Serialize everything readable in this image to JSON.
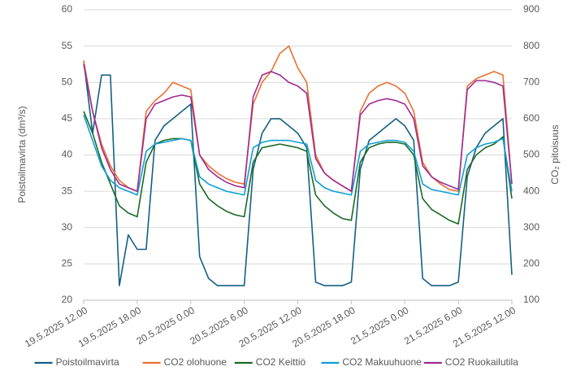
{
  "chart_data": {
    "type": "line",
    "categories": [
      "19.5.2025 12.00",
      null,
      null,
      null,
      null,
      null,
      "19.5.2025 18.00",
      null,
      null,
      null,
      null,
      null,
      "20.5.2025 0.00",
      null,
      null,
      null,
      null,
      null,
      "20.5.2025 6.00",
      null,
      null,
      null,
      null,
      null,
      "20.5.2025 12.00",
      null,
      null,
      null,
      null,
      null,
      "20.5.2025 18.00",
      null,
      null,
      null,
      null,
      null,
      "21.5.2025 0.00",
      null,
      null,
      null,
      null,
      null,
      "21.5.2025 6.00",
      null,
      null,
      null,
      null,
      null,
      "21.5.2025 12.00"
    ],
    "ylabel": "Poistoilmavirta (dm³/s)",
    "y2label": "CO₂ pitoisuus",
    "ylim": [
      20,
      60
    ],
    "yticks": [
      20,
      25,
      30,
      35,
      40,
      45,
      50,
      55,
      60
    ],
    "y2lim": [
      100,
      900
    ],
    "y2ticks": [
      100,
      200,
      300,
      400,
      500,
      600,
      700,
      800,
      900
    ],
    "grid": true,
    "legend": "bottom",
    "series": [
      {
        "name": "Poistoilmavirta",
        "color": "#156082",
        "values": [
          53,
          43,
          51,
          51,
          22,
          29,
          27,
          27,
          42,
          44,
          45,
          46,
          47,
          26,
          23,
          22,
          22,
          22,
          22,
          38,
          43,
          45,
          45,
          44,
          43,
          41,
          22.5,
          22,
          22,
          22,
          22.5,
          38,
          42,
          43,
          44,
          45,
          44,
          42,
          23,
          22,
          22,
          22,
          22.5,
          37,
          41,
          43,
          44,
          45,
          23.5
        ]
      },
      {
        "name": "CO2 olohuone",
        "color": "#e97132",
        "axis": "y2",
        "values": [
          760,
          620,
          530,
          470,
          430,
          410,
          400,
          620,
          650,
          670,
          700,
          690,
          680,
          500,
          470,
          450,
          435,
          425,
          420,
          640,
          700,
          730,
          780,
          800,
          740,
          700,
          500,
          450,
          430,
          415,
          400,
          620,
          670,
          690,
          700,
          690,
          670,
          620,
          480,
          440,
          420,
          405,
          400,
          690,
          710,
          720,
          730,
          720,
          420
        ]
      },
      {
        "name": "CO2 Keittiö",
        "color": "#196b24",
        "axis": "y2",
        "values": [
          620,
          560,
          480,
          420,
          360,
          340,
          330,
          480,
          530,
          540,
          545,
          545,
          540,
          420,
          380,
          360,
          345,
          335,
          330,
          480,
          520,
          525,
          530,
          525,
          520,
          510,
          390,
          360,
          340,
          325,
          320,
          480,
          520,
          530,
          535,
          535,
          530,
          500,
          380,
          350,
          335,
          320,
          310,
          460,
          500,
          520,
          530,
          550,
          380
        ]
      },
      {
        "name": "CO2 Makuuhuone",
        "color": "#0f9ed5",
        "axis": "y2",
        "values": [
          610,
          540,
          470,
          430,
          410,
          400,
          390,
          510,
          530,
          535,
          540,
          545,
          540,
          440,
          420,
          410,
          400,
          395,
          390,
          520,
          535,
          540,
          540,
          540,
          535,
          530,
          430,
          410,
          400,
          395,
          390,
          510,
          530,
          535,
          540,
          540,
          535,
          510,
          420,
          405,
          400,
          395,
          390,
          500,
          520,
          530,
          535,
          545,
          400
        ]
      },
      {
        "name": "CO2 Ruokailutila",
        "color": "#a02b93",
        "axis": "y2",
        "values": [
          750,
          620,
          520,
          460,
          420,
          410,
          400,
          600,
          640,
          650,
          660,
          665,
          660,
          500,
          460,
          440,
          425,
          415,
          410,
          660,
          720,
          730,
          720,
          700,
          690,
          670,
          490,
          450,
          430,
          415,
          400,
          610,
          640,
          650,
          655,
          650,
          640,
          600,
          470,
          440,
          425,
          415,
          405,
          680,
          705,
          705,
          700,
          690,
          420
        ]
      }
    ]
  }
}
